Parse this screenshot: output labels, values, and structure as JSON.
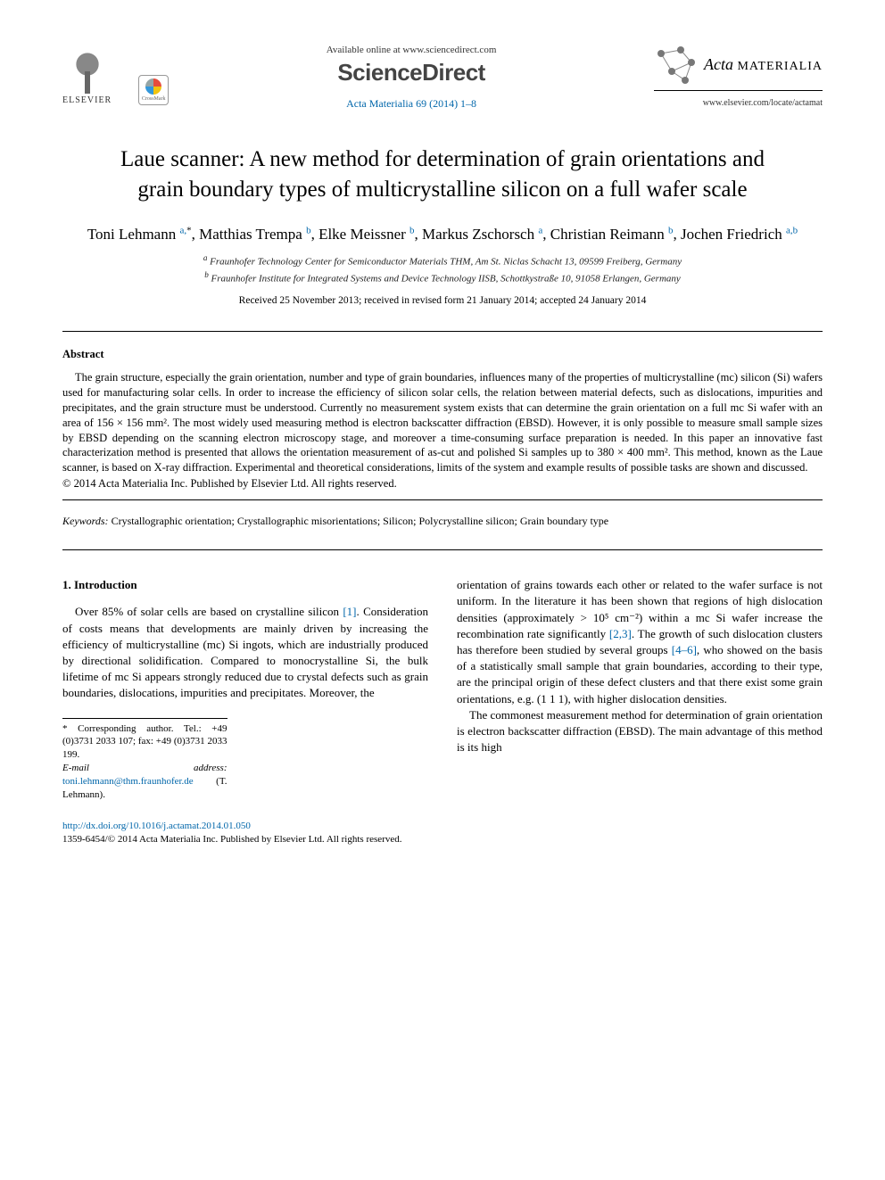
{
  "header": {
    "available_online": "Available online at www.sciencedirect.com",
    "sciencedirect": "ScienceDirect",
    "journal_ref": "Acta Materialia 69 (2014) 1–8",
    "elsevier_label": "ELSEVIER",
    "crossmark_label": "CrossMark",
    "acta_name_1": "Acta",
    "acta_name_2": "MATERIALIA",
    "locate_url": "www.elsevier.com/locate/actamat"
  },
  "title": "Laue scanner: A new method for determination of grain orientations and grain boundary types of multicrystalline silicon on a full wafer scale",
  "authors_html": "Toni Lehmann <sup><a>a,</a>*</sup>, Matthias Trempa <sup><a>b</a></sup>, Elke Meissner <sup><a>b</a></sup>, Markus Zschorsch <sup><a>a</a></sup>, Christian Reimann <sup><a>b</a></sup>, Jochen Friedrich <sup><a>a,b</a></sup>",
  "affiliations": {
    "a": "Fraunhofer Technology Center for Semiconductor Materials THM, Am St. Niclas Schacht 13, 09599 Freiberg, Germany",
    "b": "Fraunhofer Institute for Integrated Systems and Device Technology IISB, Schottkystraße 10, 91058 Erlangen, Germany"
  },
  "dates": "Received 25 November 2013; received in revised form 21 January 2014; accepted 24 January 2014",
  "abstract": {
    "heading": "Abstract",
    "text": "The grain structure, especially the grain orientation, number and type of grain boundaries, influences many of the properties of multicrystalline (mc) silicon (Si) wafers used for manufacturing solar cells. In order to increase the efficiency of silicon solar cells, the relation between material defects, such as dislocations, impurities and precipitates, and the grain structure must be understood. Currently no measurement system exists that can determine the grain orientation on a full mc Si wafer with an area of 156 × 156 mm². The most widely used measuring method is electron backscatter diffraction (EBSD). However, it is only possible to measure small sample sizes by EBSD depending on the scanning electron microscopy stage, and moreover a time-consuming surface preparation is needed. In this paper an innovative fast characterization method is presented that allows the orientation measurement of as-cut and polished Si samples up to 380 × 400 mm². This method, known as the Laue scanner, is based on X-ray diffraction. Experimental and theoretical considerations, limits of the system and example results of possible tasks are shown and discussed.",
    "copyright": "© 2014 Acta Materialia Inc. Published by Elsevier Ltd. All rights reserved."
  },
  "keywords": {
    "label": "Keywords:",
    "list": "Crystallographic orientation; Crystallographic misorientations; Silicon; Polycrystalline silicon; Grain boundary type"
  },
  "body": {
    "section_heading": "1. Introduction",
    "col1_p1": "Over 85% of solar cells are based on crystalline silicon [1]. Consideration of costs means that developments are mainly driven by increasing the efficiency of multicrystalline (mc) Si ingots, which are industrially produced by directional solidification. Compared to monocrystalline Si, the bulk lifetime of mc Si appears strongly reduced due to crystal defects such as grain boundaries, dislocations, impurities and precipitates. Moreover, the",
    "col2_p1": "orientation of grains towards each other or related to the wafer surface is not uniform. In the literature it has been shown that regions of high dislocation densities (approximately > 10⁵ cm⁻²) within a mc Si wafer increase the recombination rate significantly [2,3]. The growth of such dislocation clusters has therefore been studied by several groups [4–6], who showed on the basis of a statistically small sample that grain boundaries, according to their type, are the principal origin of these defect clusters and that there exist some grain orientations, e.g. (1 1 1), with higher dislocation densities.",
    "col2_p2": "The commonest measurement method for determination of grain orientation is electron backscatter diffraction (EBSD). The main advantage of this method is its high"
  },
  "footnotes": {
    "corresponding": "* Corresponding author. Tel.: +49 (0)3731 2033 107; fax: +49 (0)3731 2033 199.",
    "email_label": "E-mail address:",
    "email": "toni.lehmann@thm.fraunhofer.de",
    "email_who": "(T. Lehmann)."
  },
  "footer": {
    "doi": "http://dx.doi.org/10.1016/j.actamat.2014.01.050",
    "issn_line": "1359-6454/© 2014 Acta Materialia Inc. Published by Elsevier Ltd. All rights reserved."
  },
  "colors": {
    "link": "#0066aa",
    "text": "#000000",
    "rule": "#000000"
  }
}
